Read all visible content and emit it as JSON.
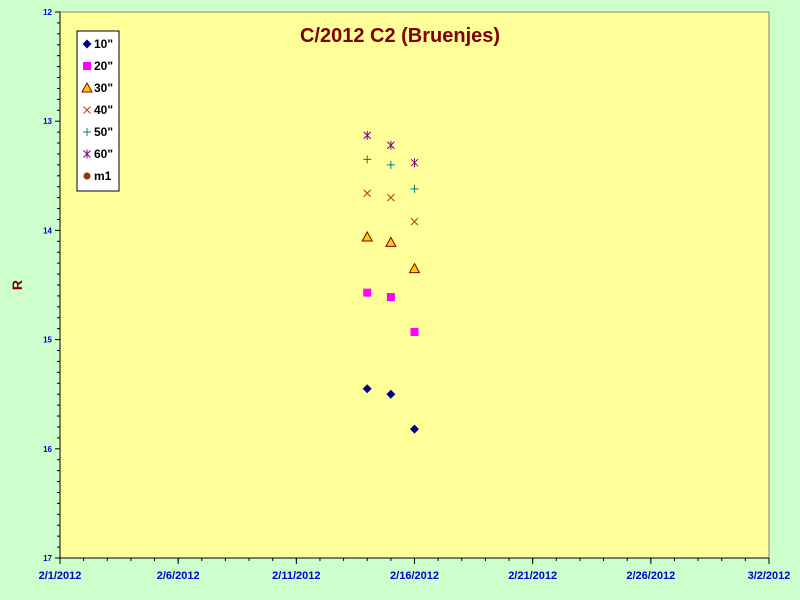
{
  "chart_data": {
    "type": "scatter",
    "title": "C/2012 C2 (Bruenjes)",
    "xlabel": "",
    "ylabel": "R",
    "x_ticks": [
      "2/1/2012",
      "2/6/2012",
      "2/11/2012",
      "2/16/2012",
      "2/21/2012",
      "2/26/2012",
      "3/2/2012"
    ],
    "x_range": [
      "2012-02-01",
      "2012-03-02"
    ],
    "y_ticks": [
      "12",
      "13",
      "14",
      "15",
      "16",
      "17"
    ],
    "ylim": [
      12,
      17
    ],
    "y_reversed": true,
    "grid": false,
    "legend_position": "top-left",
    "series": [
      {
        "name": "10\"",
        "marker": "diamond",
        "color": "#000080",
        "points": [
          {
            "x": "2012-02-14",
            "y": 15.45
          },
          {
            "x": "2012-02-15",
            "y": 15.5
          },
          {
            "x": "2012-02-16",
            "y": 15.82
          }
        ]
      },
      {
        "name": "20\"",
        "marker": "square",
        "color": "#ff00ff",
        "points": [
          {
            "x": "2012-02-14",
            "y": 14.57
          },
          {
            "x": "2012-02-15",
            "y": 14.61
          },
          {
            "x": "2012-02-16",
            "y": 14.93
          }
        ]
      },
      {
        "name": "30\"",
        "marker": "triangle",
        "color": "#ffcc00",
        "points": [
          {
            "x": "2012-02-14",
            "y": 14.06
          },
          {
            "x": "2012-02-15",
            "y": 14.11
          },
          {
            "x": "2012-02-16",
            "y": 14.35
          }
        ]
      },
      {
        "name": "40\"",
        "marker": "x",
        "color": "#cc3300",
        "points": [
          {
            "x": "2012-02-14",
            "y": 13.66
          },
          {
            "x": "2012-02-15",
            "y": 13.7
          },
          {
            "x": "2012-02-16",
            "y": 13.92
          }
        ]
      },
      {
        "name": "50\"",
        "marker": "plus",
        "color": "#008080",
        "points": [
          {
            "x": "2012-02-14",
            "y": 13.35
          },
          {
            "x": "2012-02-15",
            "y": 13.4
          },
          {
            "x": "2012-02-16",
            "y": 13.62
          }
        ]
      },
      {
        "name": "60\"",
        "marker": "star",
        "color": "#800080",
        "points": [
          {
            "x": "2012-02-14",
            "y": 13.13
          },
          {
            "x": "2012-02-15",
            "y": 13.22
          },
          {
            "x": "2012-02-16",
            "y": 13.38
          }
        ]
      },
      {
        "name": "m1",
        "marker": "circle",
        "color": "#993300",
        "points": []
      }
    ]
  }
}
